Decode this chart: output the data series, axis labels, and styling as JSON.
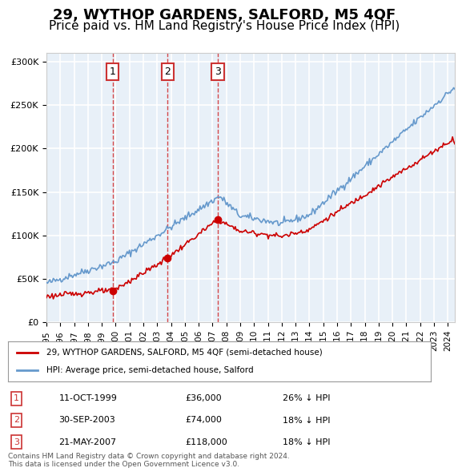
{
  "title": "29, WYTHOP GARDENS, SALFORD, M5 4QF",
  "subtitle": "Price paid vs. HM Land Registry's House Price Index (HPI)",
  "title_fontsize": 13,
  "subtitle_fontsize": 11,
  "bg_color": "#ffffff",
  "plot_bg_color": "#e8f0f8",
  "grid_color": "#ffffff",
  "hpi_color": "#6699cc",
  "price_color": "#cc0000",
  "sale_marker_color": "#cc0000",
  "sale_dashed_color": "#cc0000",
  "annotation_box_color": "#cc3333",
  "sales": [
    {
      "date_num": 1999.78,
      "price": 36000,
      "label": "1",
      "date_str": "11-OCT-1999",
      "price_str": "£36,000",
      "hpi_str": "26% ↓ HPI"
    },
    {
      "date_num": 2003.75,
      "price": 74000,
      "label": "2",
      "date_str": "30-SEP-2003",
      "price_str": "£74,000",
      "hpi_str": "18% ↓ HPI"
    },
    {
      "date_num": 2007.38,
      "price": 118000,
      "label": "3",
      "date_str": "21-MAY-2007",
      "price_str": "£118,000",
      "hpi_str": "18% ↓ HPI"
    }
  ],
  "legend_label_price": "29, WYTHOP GARDENS, SALFORD, M5 4QF (semi-detached house)",
  "legend_label_hpi": "HPI: Average price, semi-detached house, Salford",
  "footer": "Contains HM Land Registry data © Crown copyright and database right 2024.\nThis data is licensed under the Open Government Licence v3.0.",
  "ylim": [
    0,
    310000
  ],
  "yticks": [
    0,
    50000,
    100000,
    150000,
    200000,
    250000,
    300000
  ],
  "xlim": [
    1995,
    2024.5
  ],
  "xticks": [
    1995,
    1996,
    1997,
    1998,
    1999,
    2000,
    2001,
    2002,
    2003,
    2004,
    2005,
    2006,
    2007,
    2008,
    2009,
    2010,
    2011,
    2012,
    2013,
    2014,
    2015,
    2016,
    2017,
    2018,
    2019,
    2020,
    2021,
    2022,
    2023,
    2024
  ]
}
